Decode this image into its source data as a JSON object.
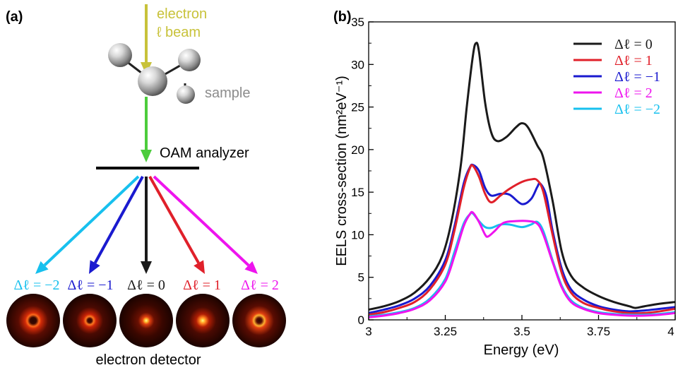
{
  "panel_a": {
    "label": "(a)",
    "beam_label_line1": "electron",
    "beam_label_line2": "ℓ beam",
    "sample_label": "sample",
    "analyzer_label": "OAM analyzer",
    "detector_label": "electron detector",
    "channels": [
      {
        "label": "Δℓ = −2",
        "color": "#17c0ee"
      },
      {
        "label": "Δℓ = −1",
        "color": "#1a1acf"
      },
      {
        "label": "Δℓ = 0",
        "color": "#1a1a1a"
      },
      {
        "label": "Δℓ = 1",
        "color": "#e0202a"
      },
      {
        "label": "Δℓ = 2",
        "color": "#ee14ee"
      }
    ],
    "colors": {
      "beam": "#c8c23a",
      "sample_label": "#8c8c8c",
      "transmitted": "#4ccc3c"
    }
  },
  "panel_b": {
    "label": "(b)",
    "chart_data": {
      "type": "line",
      "xlabel": "Energy (eV)",
      "ylabel": "EELS cross-section (nm²eV⁻¹)",
      "xlim": [
        3,
        4
      ],
      "ylim": [
        0,
        35
      ],
      "xticks": [
        "3",
        "3.25",
        "3.5",
        "3.75",
        "4"
      ],
      "yticks": [
        "0",
        "5",
        "10",
        "15",
        "20",
        "25",
        "30",
        "35"
      ],
      "legend_position": "top-right",
      "series": [
        {
          "name": "Δℓ = 0",
          "color": "#1a1a1a",
          "points": [
            [
              3.0,
              1.2
            ],
            [
              3.05,
              1.6
            ],
            [
              3.1,
              2.2
            ],
            [
              3.15,
              3.2
            ],
            [
              3.2,
              5.0
            ],
            [
              3.24,
              7.5
            ],
            [
              3.27,
              11.5
            ],
            [
              3.3,
              18.0
            ],
            [
              3.32,
              25.0
            ],
            [
              3.34,
              31.0
            ],
            [
              3.35,
              32.5
            ],
            [
              3.36,
              31.5
            ],
            [
              3.38,
              25.5
            ],
            [
              3.4,
              22.0
            ],
            [
              3.42,
              21.0
            ],
            [
              3.45,
              21.5
            ],
            [
              3.48,
              22.6
            ],
            [
              3.5,
              23.1
            ],
            [
              3.52,
              22.6
            ],
            [
              3.55,
              20.5
            ],
            [
              3.57,
              19.0
            ],
            [
              3.6,
              14.0
            ],
            [
              3.63,
              8.0
            ],
            [
              3.66,
              5.2
            ],
            [
              3.7,
              3.8
            ],
            [
              3.75,
              2.8
            ],
            [
              3.8,
              2.1
            ],
            [
              3.85,
              1.6
            ],
            [
              3.87,
              1.4
            ],
            [
              3.9,
              1.6
            ],
            [
              3.95,
              1.9
            ],
            [
              4.0,
              2.1
            ]
          ]
        },
        {
          "name": "Δℓ = 1",
          "color": "#e0202a",
          "points": [
            [
              3.0,
              0.6
            ],
            [
              3.05,
              0.9
            ],
            [
              3.1,
              1.4
            ],
            [
              3.15,
              2.1
            ],
            [
              3.2,
              3.6
            ],
            [
              3.25,
              6.5
            ],
            [
              3.28,
              10.5
            ],
            [
              3.31,
              15.5
            ],
            [
              3.33,
              17.8
            ],
            [
              3.34,
              18.1
            ],
            [
              3.36,
              16.8
            ],
            [
              3.38,
              14.8
            ],
            [
              3.4,
              13.8
            ],
            [
              3.43,
              14.6
            ],
            [
              3.46,
              15.4
            ],
            [
              3.5,
              16.2
            ],
            [
              3.53,
              16.5
            ],
            [
              3.55,
              16.4
            ],
            [
              3.57,
              15.0
            ],
            [
              3.6,
              10.0
            ],
            [
              3.63,
              5.5
            ],
            [
              3.66,
              3.2
            ],
            [
              3.7,
              2.0
            ],
            [
              3.75,
              1.4
            ],
            [
              3.8,
              1.0
            ],
            [
              3.85,
              0.8
            ],
            [
              3.9,
              0.8
            ],
            [
              3.95,
              1.0
            ],
            [
              4.0,
              1.3
            ]
          ]
        },
        {
          "name": "Δℓ = −1",
          "color": "#1a1acf",
          "points": [
            [
              3.0,
              0.8
            ],
            [
              3.05,
              1.2
            ],
            [
              3.1,
              1.7
            ],
            [
              3.15,
              2.5
            ],
            [
              3.2,
              4.0
            ],
            [
              3.25,
              7.0
            ],
            [
              3.28,
              11.0
            ],
            [
              3.31,
              16.0
            ],
            [
              3.33,
              17.9
            ],
            [
              3.34,
              18.2
            ],
            [
              3.36,
              17.5
            ],
            [
              3.38,
              15.5
            ],
            [
              3.4,
              14.6
            ],
            [
              3.43,
              14.8
            ],
            [
              3.46,
              14.7
            ],
            [
              3.5,
              13.6
            ],
            [
              3.53,
              14.2
            ],
            [
              3.55,
              15.6
            ],
            [
              3.56,
              16.0
            ],
            [
              3.58,
              14.5
            ],
            [
              3.6,
              10.5
            ],
            [
              3.63,
              6.0
            ],
            [
              3.66,
              3.6
            ],
            [
              3.7,
              2.4
            ],
            [
              3.75,
              1.6
            ],
            [
              3.8,
              1.2
            ],
            [
              3.85,
              1.0
            ],
            [
              3.9,
              1.1
            ],
            [
              3.95,
              1.3
            ],
            [
              4.0,
              1.5
            ]
          ]
        },
        {
          "name": "Δℓ = 2",
          "color": "#ee14ee",
          "points": [
            [
              3.0,
              0.3
            ],
            [
              3.05,
              0.5
            ],
            [
              3.1,
              0.8
            ],
            [
              3.15,
              1.3
            ],
            [
              3.2,
              2.3
            ],
            [
              3.25,
              4.5
            ],
            [
              3.28,
              7.5
            ],
            [
              3.31,
              11.0
            ],
            [
              3.33,
              12.4
            ],
            [
              3.34,
              12.6
            ],
            [
              3.36,
              11.5
            ],
            [
              3.38,
              10.0
            ],
            [
              3.39,
              9.8
            ],
            [
              3.41,
              10.4
            ],
            [
              3.44,
              11.4
            ],
            [
              3.48,
              11.6
            ],
            [
              3.52,
              11.6
            ],
            [
              3.55,
              11.3
            ],
            [
              3.57,
              10.0
            ],
            [
              3.6,
              6.8
            ],
            [
              3.63,
              3.8
            ],
            [
              3.66,
              2.1
            ],
            [
              3.7,
              1.3
            ],
            [
              3.75,
              0.8
            ],
            [
              3.8,
              0.6
            ],
            [
              3.85,
              0.5
            ],
            [
              3.9,
              0.5
            ],
            [
              3.95,
              0.6
            ],
            [
              4.0,
              0.8
            ]
          ]
        },
        {
          "name": "Δℓ = −2",
          "color": "#17c0ee",
          "points": [
            [
              3.0,
              0.4
            ],
            [
              3.05,
              0.6
            ],
            [
              3.1,
              0.9
            ],
            [
              3.15,
              1.4
            ],
            [
              3.2,
              2.5
            ],
            [
              3.25,
              4.8
            ],
            [
              3.28,
              8.0
            ],
            [
              3.31,
              11.3
            ],
            [
              3.33,
              12.4
            ],
            [
              3.34,
              12.5
            ],
            [
              3.36,
              11.6
            ],
            [
              3.38,
              10.9
            ],
            [
              3.4,
              10.8
            ],
            [
              3.43,
              11.2
            ],
            [
              3.46,
              11.2
            ],
            [
              3.5,
              10.9
            ],
            [
              3.53,
              11.2
            ],
            [
              3.55,
              11.5
            ],
            [
              3.57,
              10.4
            ],
            [
              3.6,
              7.0
            ],
            [
              3.63,
              4.0
            ],
            [
              3.66,
              2.3
            ],
            [
              3.7,
              1.4
            ],
            [
              3.75,
              0.9
            ],
            [
              3.8,
              0.7
            ],
            [
              3.85,
              0.6
            ],
            [
              3.9,
              0.6
            ],
            [
              3.95,
              0.7
            ],
            [
              4.0,
              0.9
            ]
          ]
        }
      ]
    }
  }
}
